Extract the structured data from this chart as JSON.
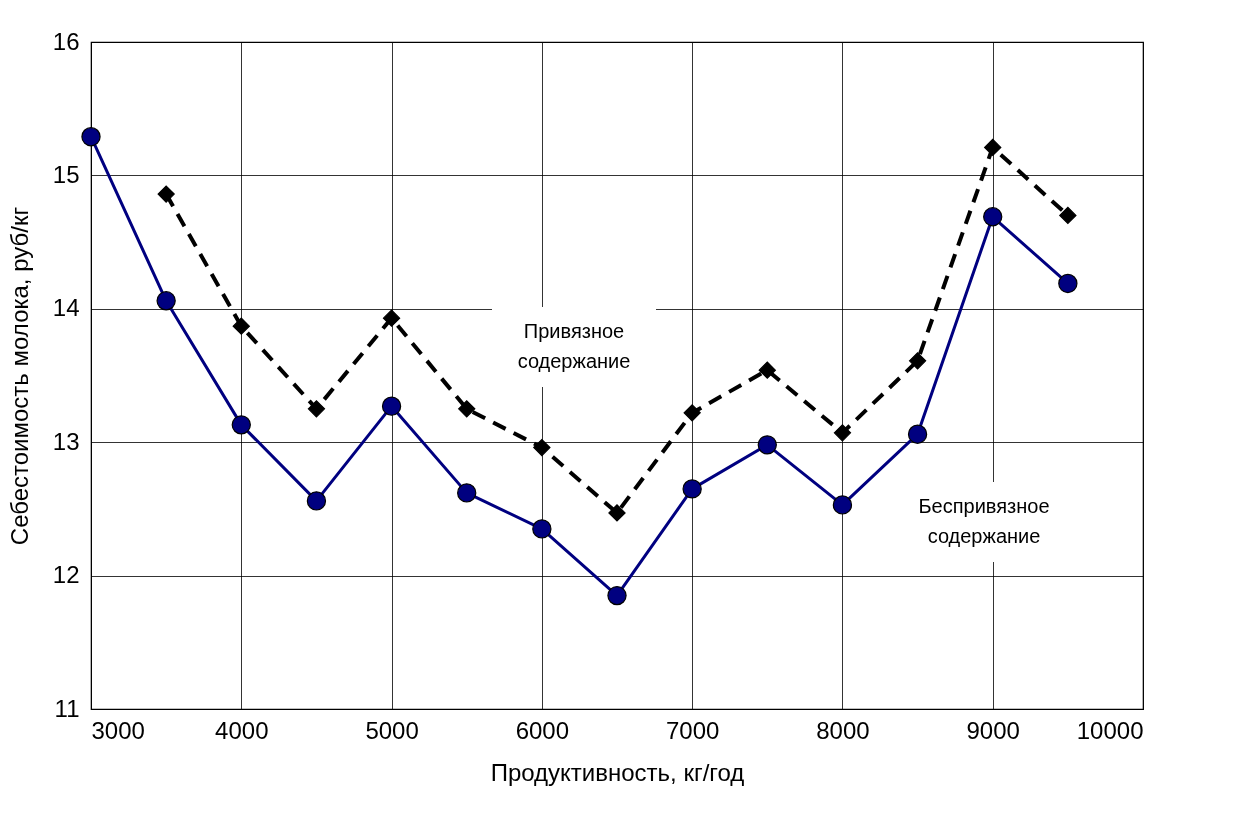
{
  "chart_data": {
    "type": "line",
    "xlabel": "Продуктивность, кг/год",
    "ylabel": "Себестоимость молока, руб/кг",
    "x": [
      3000,
      3500,
      4000,
      4500,
      5000,
      5500,
      6000,
      6500,
      7000,
      7500,
      8000,
      8500,
      9000,
      9500
    ],
    "series": [
      {
        "color": "#000000",
        "marker": "diamond",
        "line_style": "dashed",
        "values": [
          null,
          14.86,
          13.87,
          13.25,
          13.93,
          13.25,
          12.96,
          12.47,
          13.22,
          13.54,
          13.07,
          13.61,
          15.21,
          14.7
        ]
      },
      {
        "color": "#000080",
        "marker": "circle",
        "line_style": "solid",
        "values": [
          15.29,
          14.06,
          13.13,
          12.56,
          13.27,
          12.62,
          12.35,
          11.85,
          12.65,
          12.98,
          12.53,
          13.06,
          14.69,
          14.19
        ]
      }
    ],
    "annotations": [
      "Привязное содержание",
      "Беспривязное содержание"
    ],
    "xlim": [
      3000,
      10000
    ],
    "xticks": [
      3000,
      4000,
      5000,
      6000,
      7000,
      8000,
      9000,
      10000
    ],
    "ylim": [
      11,
      16
    ],
    "yticks": [
      11,
      12,
      13,
      14,
      15,
      16
    ],
    "grid": true
  }
}
